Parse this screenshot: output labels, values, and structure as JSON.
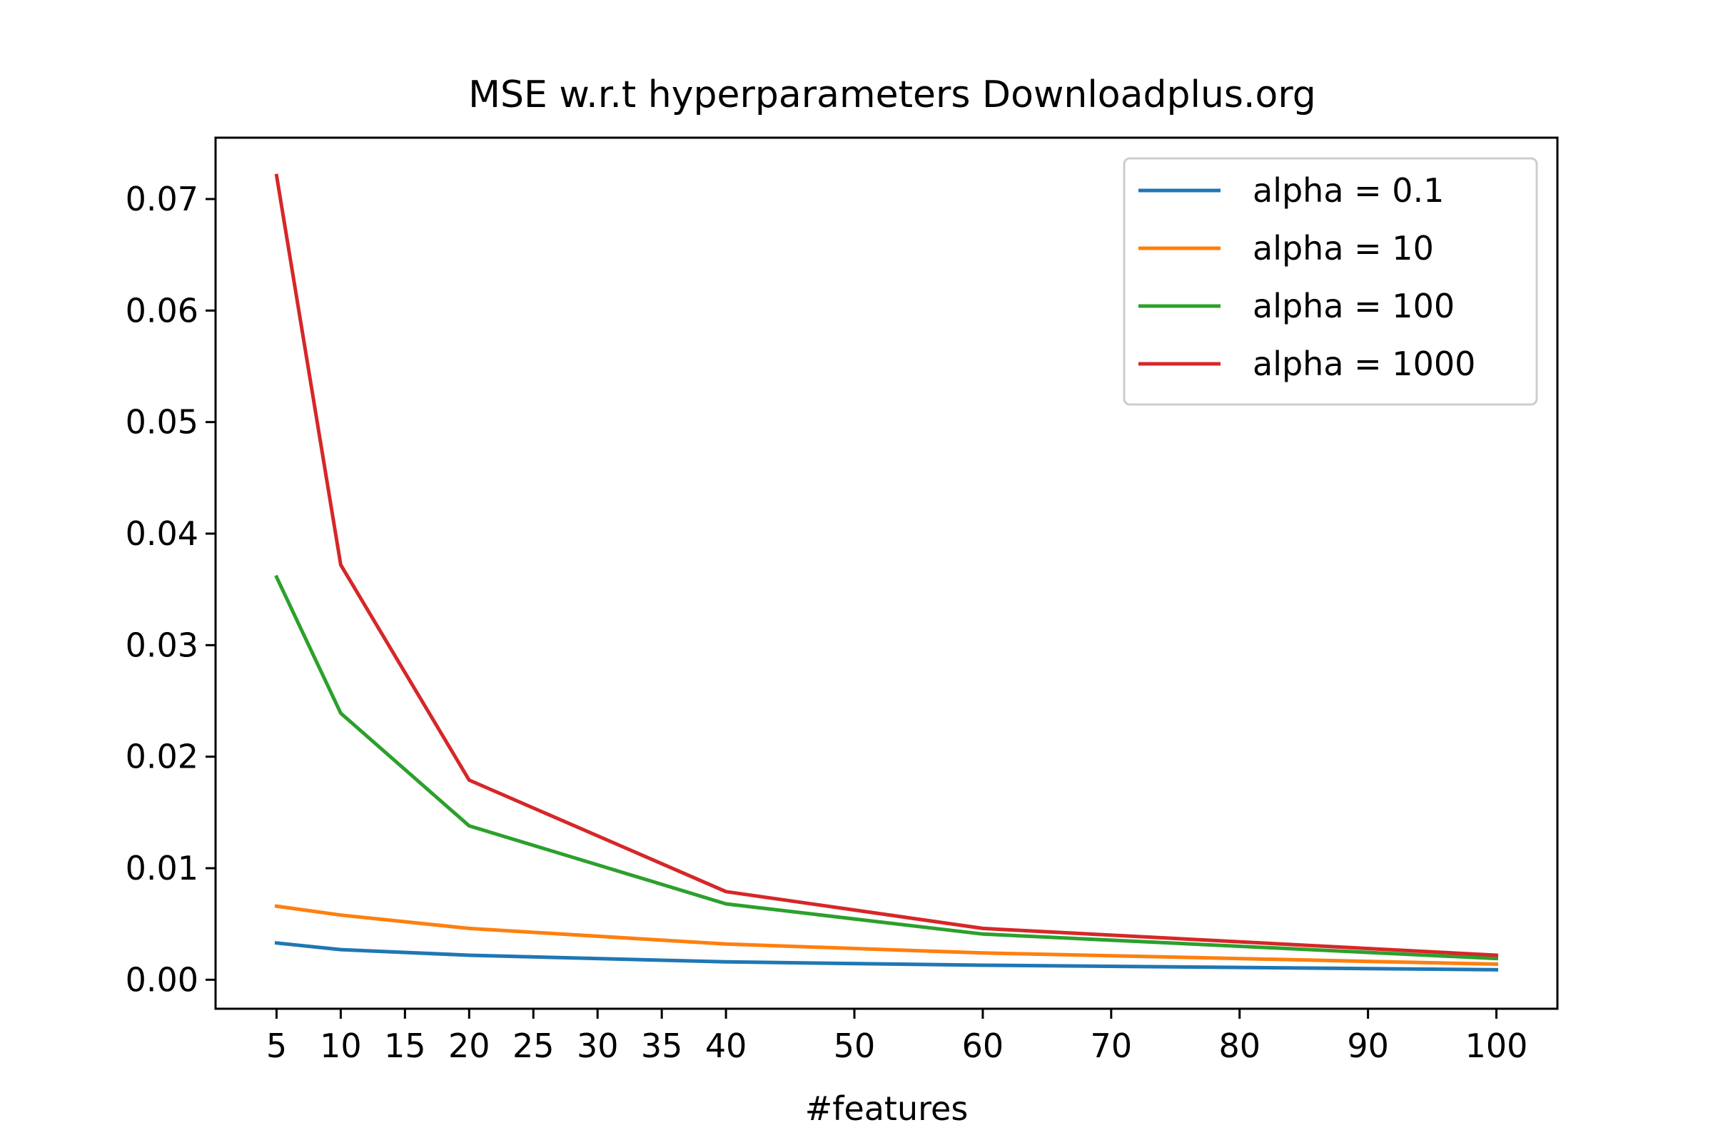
{
  "chart_data": {
    "type": "line",
    "title": "MSE w.r.t hyperparameters Downloadplus.org",
    "xlabel": "#features",
    "ylabel": "",
    "xlim": [
      0.25,
      104.75
    ],
    "ylim": [
      -0.0026,
      0.0755
    ],
    "x": [
      5,
      10,
      20,
      40,
      60,
      100
    ],
    "xticks": [
      5,
      10,
      15,
      20,
      25,
      30,
      35,
      40,
      50,
      60,
      70,
      80,
      90,
      100
    ],
    "yticks": [
      0.0,
      0.01,
      0.02,
      0.03,
      0.04,
      0.05,
      0.06,
      0.07
    ],
    "ytick_labels": [
      "0.00",
      "0.01",
      "0.02",
      "0.03",
      "0.04",
      "0.05",
      "0.06",
      "0.07"
    ],
    "grid": false,
    "legend_position": "upper right",
    "series": [
      {
        "name": "alpha = 0.1",
        "color": "#1f77b4",
        "values": [
          0.0033,
          0.0027,
          0.0022,
          0.0016,
          0.0013,
          0.0009
        ]
      },
      {
        "name": "alpha = 10",
        "color": "#ff7f0e",
        "values": [
          0.0066,
          0.0058,
          0.0046,
          0.0032,
          0.0024,
          0.0014
        ]
      },
      {
        "name": "alpha = 100",
        "color": "#2ca02c",
        "values": [
          0.0361,
          0.0239,
          0.0138,
          0.0068,
          0.0041,
          0.0019
        ]
      },
      {
        "name": "alpha = 1000",
        "color": "#d62728",
        "values": [
          0.0721,
          0.0372,
          0.0179,
          0.0079,
          0.0046,
          0.0022
        ]
      }
    ]
  }
}
